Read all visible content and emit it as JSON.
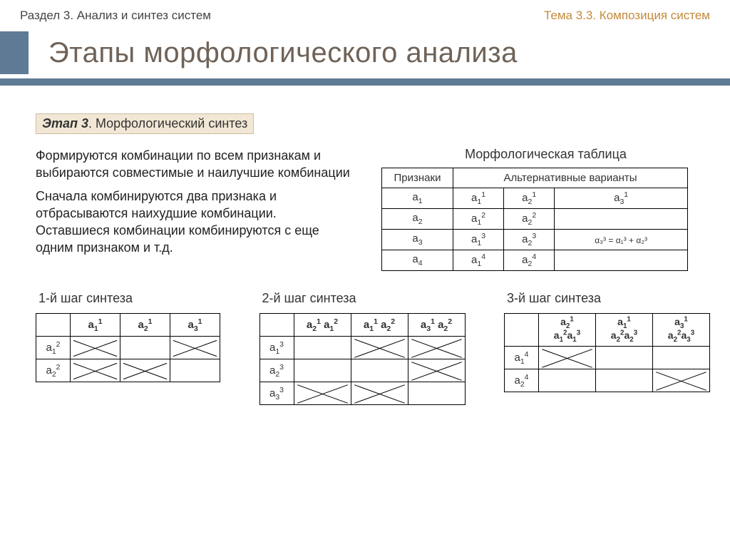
{
  "header": {
    "section": "Раздел 3. Анализ и синтез систем",
    "topic": "Тема 3.3. Композиция систем"
  },
  "title": "Этапы морфологического анализа",
  "stage": {
    "prefix": "Этап 3",
    "name": ". Морфологический синтез"
  },
  "paragraphs": {
    "p1": "Формируются комбинации по всем признакам и выбираются совместимые и наилучшие комбинации",
    "p2": "Сначала комбинируются два признака и отбрасываются наихудшие комбинации. Оставшиеся комбинации комбинируются с еще одним признаком и т.д."
  },
  "morph_table": {
    "title": "Морфологическая таблица",
    "headers": {
      "c1": "Признаки",
      "c2": "Альтернативные варианты"
    },
    "rows": [
      {
        "attr_base": "а",
        "attr_sub": "1",
        "cells": [
          {
            "base": "а",
            "sub": "1",
            "sup": "1"
          },
          {
            "base": "а",
            "sub": "2",
            "sup": "1"
          },
          {
            "base": "а",
            "sub": "3",
            "sup": "1"
          }
        ]
      },
      {
        "attr_base": "а",
        "attr_sub": "2",
        "cells": [
          {
            "base": "а",
            "sub": "1",
            "sup": "2"
          },
          {
            "base": "а",
            "sub": "2",
            "sup": "2"
          },
          null
        ]
      },
      {
        "attr_base": "а",
        "attr_sub": "3",
        "cells": [
          {
            "base": "а",
            "sub": "1",
            "sup": "3"
          },
          {
            "base": "а",
            "sub": "2",
            "sup": "3"
          },
          {
            "formula": "α₃³ = α₁³ + α₂³"
          }
        ]
      },
      {
        "attr_base": "а",
        "attr_sub": "4",
        "cells": [
          {
            "base": "а",
            "sub": "1",
            "sup": "4"
          },
          {
            "base": "а",
            "sub": "2",
            "sup": "4"
          },
          null
        ]
      }
    ]
  },
  "steps": [
    {
      "title": "1-й шаг синтеза",
      "col_widths": [
        "48px",
        "70px",
        "70px",
        "70px"
      ],
      "col_headers": [
        [
          {
            "base": "а",
            "sub": "1",
            "sup": "1"
          }
        ],
        [
          {
            "base": "а",
            "sub": "2",
            "sup": "1"
          }
        ],
        [
          {
            "base": "а",
            "sub": "3",
            "sup": "1"
          }
        ]
      ],
      "rows": [
        {
          "hdr": [
            {
              "base": "а",
              "sub": "1",
              "sup": "2"
            }
          ],
          "cells": [
            "cross",
            "",
            "cross"
          ]
        },
        {
          "hdr": [
            {
              "base": "а",
              "sub": "2",
              "sup": "2"
            }
          ],
          "cells": [
            "cross",
            "cross",
            ""
          ]
        }
      ]
    },
    {
      "title": "2-й шаг синтеза",
      "col_widths": [
        "48px",
        "80px",
        "80px",
        "80px"
      ],
      "col_headers": [
        [
          {
            "base": "а",
            "sub": "2",
            "sup": "1"
          },
          {
            "base": " а",
            "sub": "1",
            "sup": "2"
          }
        ],
        [
          {
            "base": "а",
            "sub": "1",
            "sup": "1"
          },
          {
            "base": " а",
            "sub": "2",
            "sup": "2"
          }
        ],
        [
          {
            "base": "а",
            "sub": "3",
            "sup": "1"
          },
          {
            "base": " а",
            "sub": "2",
            "sup": "2"
          }
        ]
      ],
      "rows": [
        {
          "hdr": [
            {
              "base": "а",
              "sub": "1",
              "sup": "3"
            }
          ],
          "cells": [
            "",
            "cross",
            "cross"
          ]
        },
        {
          "hdr": [
            {
              "base": "а",
              "sub": "2",
              "sup": "3"
            }
          ],
          "cells": [
            "",
            "",
            "cross"
          ]
        },
        {
          "hdr": [
            {
              "base": "а",
              "sub": "3",
              "sup": "3"
            }
          ],
          "cells": [
            "cross",
            "cross",
            ""
          ]
        }
      ]
    },
    {
      "title": "3-й шаг синтеза",
      "col_widths": [
        "48px",
        "80px",
        "80px",
        "80px"
      ],
      "col_headers_multi": [
        [
          [
            {
              "base": "а",
              "sub": "2",
              "sup": "1"
            }
          ],
          [
            {
              "base": "а",
              "sub": "1",
              "sup": "2"
            },
            {
              "base": "а",
              "sub": "1",
              "sup": "3"
            }
          ]
        ],
        [
          [
            {
              "base": "а",
              "sub": "1",
              "sup": "1"
            }
          ],
          [
            {
              "base": "а",
              "sub": "2",
              "sup": "2"
            },
            {
              "base": "а",
              "sub": "2",
              "sup": "3"
            }
          ]
        ],
        [
          [
            {
              "base": "а",
              "sub": "3",
              "sup": "1"
            }
          ],
          [
            {
              "base": "а",
              "sub": "2",
              "sup": "2"
            },
            {
              "base": "а",
              "sub": "3",
              "sup": "3"
            }
          ]
        ]
      ],
      "rows": [
        {
          "hdr": [
            {
              "base": "а",
              "sub": "1",
              "sup": "4"
            }
          ],
          "cells": [
            "cross",
            "",
            ""
          ]
        },
        {
          "hdr": [
            {
              "base": "а",
              "sub": "2",
              "sup": "4"
            }
          ],
          "cells": [
            "",
            "",
            "cross"
          ]
        }
      ]
    }
  ],
  "colors": {
    "header_text": "#444444",
    "topic_text": "#c48a3a",
    "title_text": "#6f6257",
    "bar": "#5f7a95",
    "stage_bg": "#f2e7d5",
    "stage_border": "#cdbfa3",
    "border": "#000000"
  }
}
